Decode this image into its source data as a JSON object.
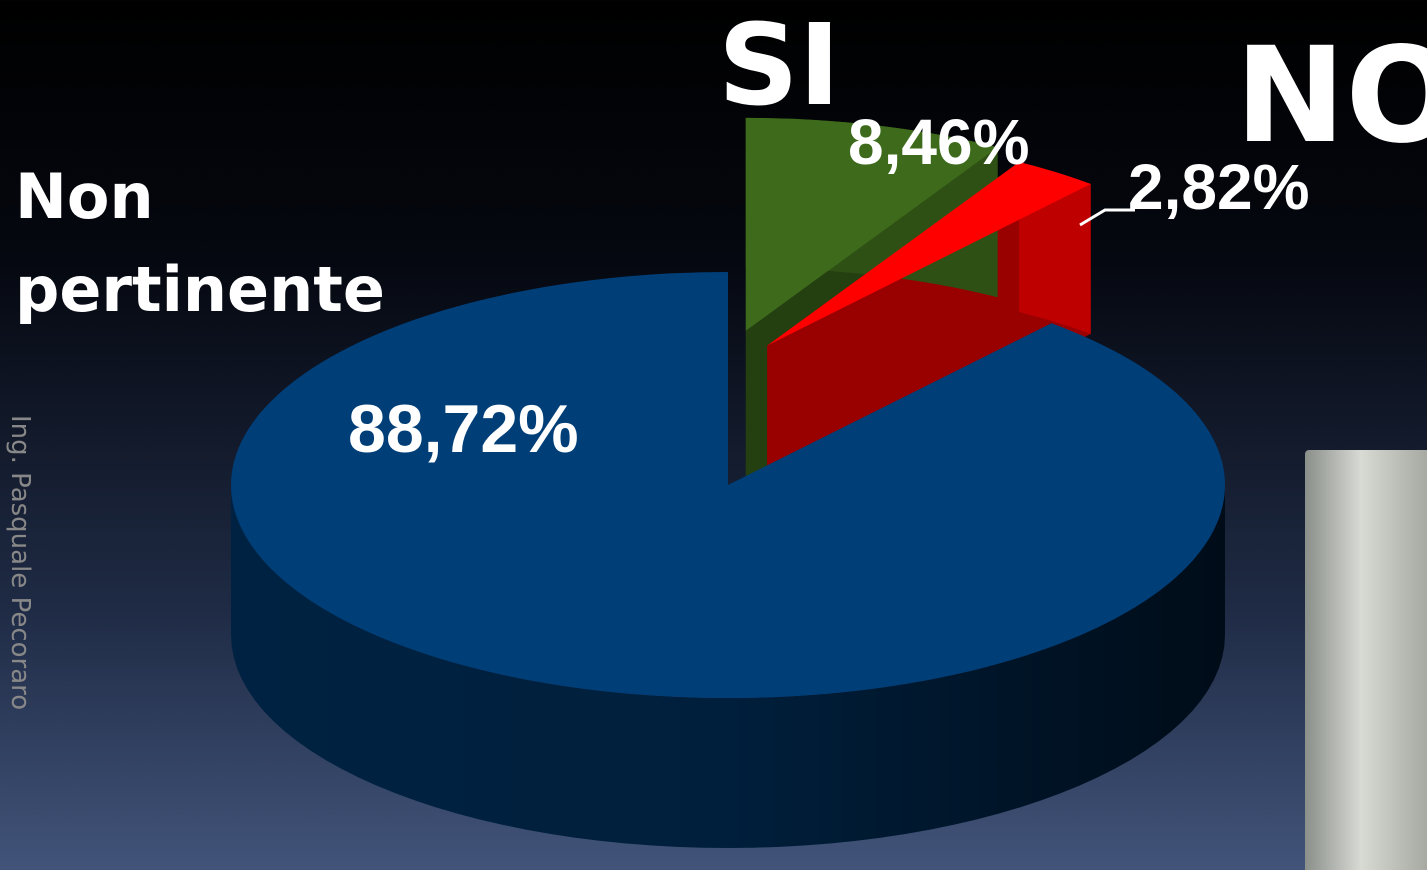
{
  "chart_data": {
    "type": "pie",
    "categories": [
      "SI",
      "NO",
      "Non pertinente"
    ],
    "values": [
      8.46,
      2.82,
      88.72
    ],
    "value_labels": [
      "8,46%",
      "2,82%",
      "88,72%"
    ],
    "colors": [
      "#3e6b1b",
      "#ff0000",
      "#003e78"
    ]
  },
  "footer": "Ing. Pasquale Pecoraro"
}
